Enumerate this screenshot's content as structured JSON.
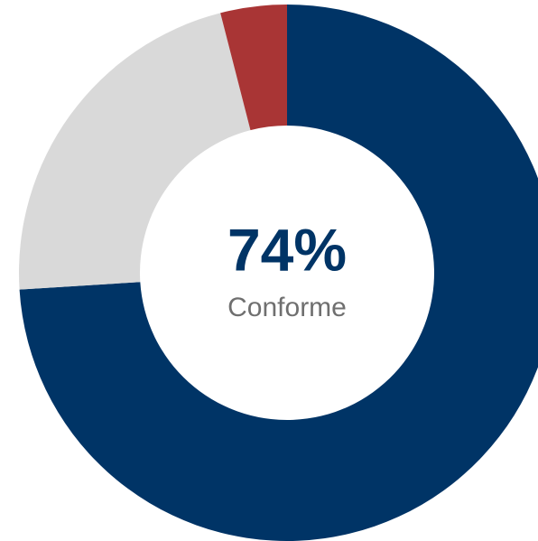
{
  "chart_data": {
    "type": "donut",
    "values": [
      74,
      22,
      4
    ],
    "colors": [
      "#003466",
      "#d9d9d9",
      "#a93535"
    ],
    "center_text": "74%",
    "center_subtext": "Conforme"
  }
}
